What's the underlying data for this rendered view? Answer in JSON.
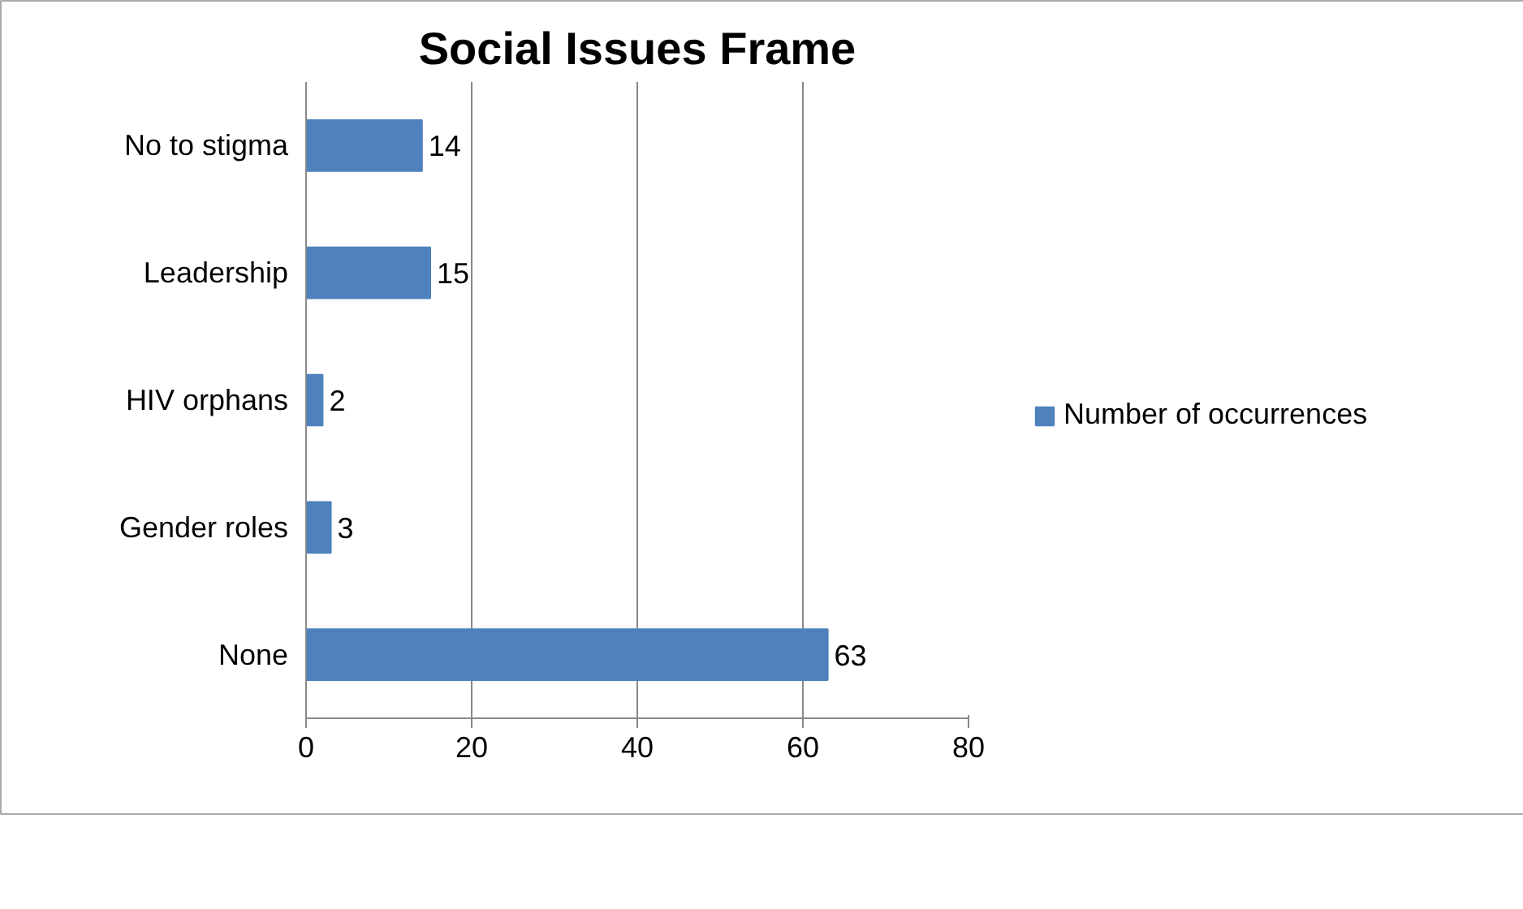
{
  "chart_data": {
    "type": "bar",
    "orientation": "horizontal",
    "title": "Social Issues Frame",
    "categories": [
      "No to stigma",
      "Leadership",
      "HIV orphans",
      "Gender roles",
      "None"
    ],
    "series": [
      {
        "name": "Number of occurrences",
        "color": "#4f81bd",
        "values": [
          14,
          15,
          2,
          3,
          63
        ]
      }
    ],
    "xlim": [
      0,
      80
    ],
    "xticks": [
      0,
      20,
      40,
      60,
      80
    ],
    "grid": "x",
    "legend": "right",
    "data_labels": true
  }
}
